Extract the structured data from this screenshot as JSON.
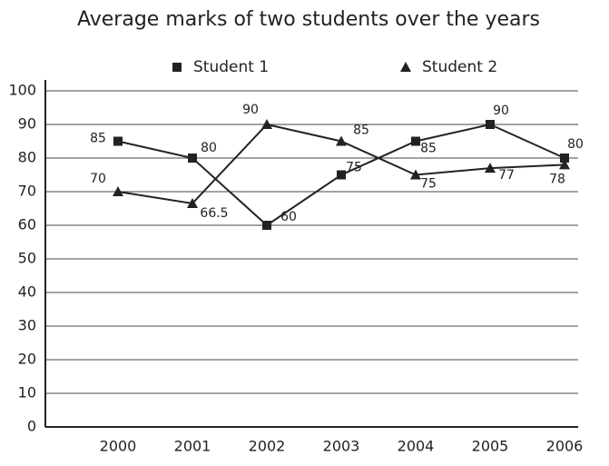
{
  "chart_data": {
    "type": "line",
    "title": "Average marks of two students over the years",
    "categories": [
      "2000",
      "2001",
      "2002",
      "2003",
      "2004",
      "2005",
      "2006"
    ],
    "series": [
      {
        "name": "Student 1",
        "color": "#222222",
        "marker": "square",
        "values": [
          85,
          80,
          60,
          75,
          85,
          90,
          80
        ]
      },
      {
        "name": "Student 2",
        "color": "#222222",
        "marker": "triangle",
        "values": [
          70,
          66.5,
          90,
          85,
          75,
          77,
          78
        ]
      }
    ],
    "ylim": [
      0,
      100
    ],
    "yticks": [
      0,
      10,
      20,
      30,
      40,
      50,
      60,
      70,
      80,
      90,
      100
    ],
    "grid": true,
    "legend": "top"
  }
}
